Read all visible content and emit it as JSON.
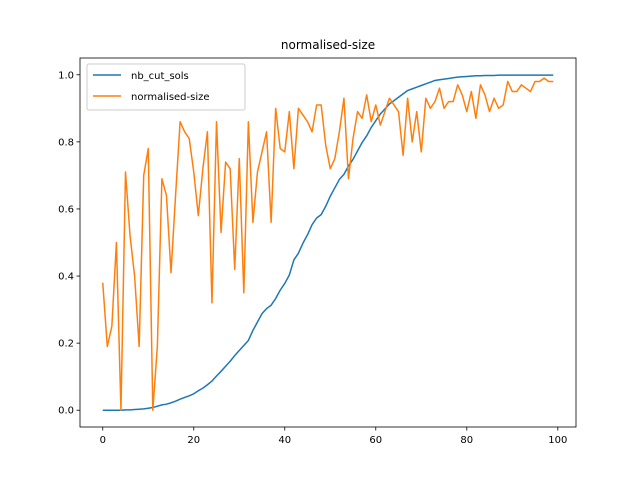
{
  "chart_data": {
    "type": "line",
    "title": "normalised-size",
    "xlabel": "",
    "ylabel": "",
    "xlim": [
      -5,
      104
    ],
    "ylim": [
      -0.05,
      1.05
    ],
    "xticks": [
      0,
      20,
      40,
      60,
      80,
      100
    ],
    "yticks": [
      0.0,
      0.2,
      0.4,
      0.6,
      0.8,
      1.0
    ],
    "grid": false,
    "legend": "top-left",
    "series": [
      {
        "name": "nb_cut_sols",
        "color": "#1f77b4",
        "x": [
          0,
          1,
          2,
          3,
          4,
          5,
          6,
          7,
          8,
          9,
          10,
          11,
          12,
          13,
          14,
          15,
          16,
          17,
          18,
          19,
          20,
          21,
          22,
          23,
          24,
          25,
          26,
          27,
          28,
          29,
          30,
          31,
          32,
          33,
          34,
          35,
          36,
          37,
          38,
          39,
          40,
          41,
          42,
          43,
          44,
          45,
          46,
          47,
          48,
          49,
          50,
          51,
          52,
          53,
          54,
          55,
          56,
          57,
          58,
          59,
          60,
          61,
          62,
          63,
          64,
          65,
          66,
          67,
          68,
          69,
          70,
          71,
          72,
          73,
          74,
          75,
          76,
          77,
          78,
          79,
          80,
          81,
          82,
          83,
          84,
          85,
          86,
          87,
          88,
          89,
          90,
          91,
          92,
          93,
          94,
          95,
          96,
          97,
          98,
          99
        ],
        "values": [
          0.0,
          0.0,
          0.0,
          0.0,
          0.0,
          0.001,
          0.001,
          0.002,
          0.003,
          0.004,
          0.006,
          0.008,
          0.012,
          0.016,
          0.018,
          0.022,
          0.027,
          0.033,
          0.038,
          0.043,
          0.049,
          0.058,
          0.066,
          0.076,
          0.087,
          0.102,
          0.116,
          0.131,
          0.146,
          0.163,
          0.178,
          0.193,
          0.208,
          0.238,
          0.263,
          0.288,
          0.303,
          0.313,
          0.333,
          0.358,
          0.378,
          0.403,
          0.448,
          0.468,
          0.498,
          0.523,
          0.553,
          0.573,
          0.583,
          0.608,
          0.638,
          0.663,
          0.688,
          0.703,
          0.728,
          0.748,
          0.773,
          0.798,
          0.818,
          0.843,
          0.863,
          0.883,
          0.898,
          0.913,
          0.923,
          0.933,
          0.943,
          0.953,
          0.958,
          0.963,
          0.968,
          0.973,
          0.978,
          0.983,
          0.985,
          0.987,
          0.989,
          0.991,
          0.993,
          0.994,
          0.995,
          0.996,
          0.997,
          0.997,
          0.998,
          0.998,
          0.998,
          0.999,
          0.999,
          0.999,
          0.999,
          0.999,
          0.999,
          0.999,
          0.999,
          0.999,
          0.999,
          0.999,
          0.999,
          0.999
        ]
      },
      {
        "name": "normalised-size",
        "color": "#ff7f0e",
        "x": [
          0,
          1,
          2,
          3,
          4,
          5,
          6,
          7,
          8,
          9,
          10,
          11,
          12,
          13,
          14,
          15,
          16,
          17,
          18,
          19,
          20,
          21,
          22,
          23,
          24,
          25,
          26,
          27,
          28,
          29,
          30,
          31,
          32,
          33,
          34,
          35,
          36,
          37,
          38,
          39,
          40,
          41,
          42,
          43,
          44,
          45,
          46,
          47,
          48,
          49,
          50,
          51,
          52,
          53,
          54,
          55,
          56,
          57,
          58,
          59,
          60,
          61,
          62,
          63,
          64,
          65,
          66,
          67,
          68,
          69,
          70,
          71,
          72,
          73,
          74,
          75,
          76,
          77,
          78,
          79,
          80,
          81,
          82,
          83,
          84,
          85,
          86,
          87,
          88,
          89,
          90,
          91,
          92,
          93,
          94,
          95,
          96,
          97,
          98,
          99
        ],
        "values": [
          0.38,
          0.19,
          0.25,
          0.5,
          0.0,
          0.71,
          0.52,
          0.4,
          0.19,
          0.7,
          0.78,
          0.0,
          0.19,
          0.69,
          0.64,
          0.41,
          0.64,
          0.86,
          0.83,
          0.81,
          0.71,
          0.58,
          0.72,
          0.83,
          0.32,
          0.86,
          0.53,
          0.74,
          0.72,
          0.42,
          0.75,
          0.35,
          0.86,
          0.56,
          0.71,
          0.77,
          0.83,
          0.56,
          0.9,
          0.78,
          0.77,
          0.89,
          0.72,
          0.9,
          0.88,
          0.86,
          0.83,
          0.91,
          0.91,
          0.79,
          0.72,
          0.75,
          0.83,
          0.93,
          0.69,
          0.81,
          0.89,
          0.87,
          0.94,
          0.86,
          0.91,
          0.85,
          0.89,
          0.93,
          0.91,
          0.89,
          0.76,
          0.93,
          0.8,
          0.89,
          0.77,
          0.93,
          0.9,
          0.92,
          0.96,
          0.9,
          0.92,
          0.92,
          0.97,
          0.94,
          0.89,
          0.95,
          0.87,
          0.97,
          0.94,
          0.89,
          0.93,
          0.9,
          0.91,
          0.98,
          0.95,
          0.95,
          0.97,
          0.96,
          0.95,
          0.98,
          0.98,
          0.99,
          0.98,
          0.98
        ]
      }
    ]
  }
}
